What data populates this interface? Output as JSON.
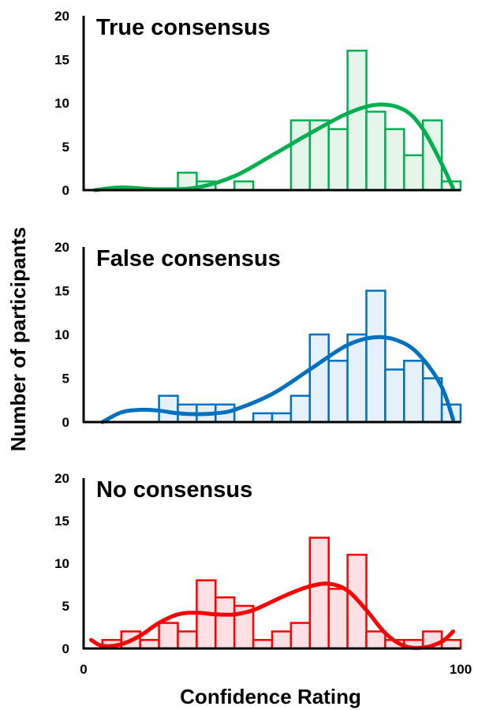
{
  "chart_data": {
    "type": "bar",
    "ylabel": "Number of participants",
    "xlabel": "Confidence Rating",
    "x_ticks": [
      "0",
      "100"
    ],
    "y_ticks": [
      "0",
      "5",
      "10",
      "15",
      "20"
    ],
    "xlim": [
      0,
      100
    ],
    "ylim": [
      0,
      20
    ],
    "bin_width": 5,
    "panels": [
      {
        "title": "True consensus",
        "color": "#00b050",
        "fill": "#e6f5ea",
        "bin_starts": [
          25,
          30,
          40,
          55,
          60,
          65,
          70,
          75,
          80,
          85,
          90,
          95
        ],
        "values": [
          2,
          1,
          1,
          8,
          8,
          7,
          16,
          9,
          7,
          4,
          8,
          1
        ],
        "curve_x": [
          3,
          10,
          20,
          30,
          40,
          50,
          60,
          70,
          78,
          85,
          90,
          95,
          98
        ],
        "curve_y": [
          0,
          0.3,
          0.1,
          0.3,
          1.6,
          4.0,
          6.5,
          8.8,
          9.8,
          9.2,
          7.0,
          3.0,
          0.2
        ]
      },
      {
        "title": "False consensus",
        "color": "#0070c0",
        "fill": "#e5f0fa",
        "bin_starts": [
          20,
          25,
          30,
          35,
          45,
          50,
          55,
          60,
          65,
          70,
          75,
          80,
          85,
          90,
          95
        ],
        "values": [
          3,
          2,
          2,
          2,
          1,
          1,
          3,
          10,
          7,
          10,
          15,
          6,
          7,
          5,
          2
        ],
        "curve_x": [
          5,
          10,
          15,
          20,
          25,
          30,
          35,
          40,
          50,
          60,
          70,
          78,
          85,
          90,
          95,
          98
        ],
        "curve_y": [
          0,
          1.1,
          1.4,
          1.3,
          1.0,
          0.9,
          1.0,
          1.4,
          3.2,
          6.0,
          8.8,
          9.7,
          9.0,
          7.2,
          4.0,
          0.3
        ]
      },
      {
        "title": "No consensus",
        "color": "#ff0000",
        "fill": "#fde0e3",
        "bin_starts": [
          5,
          10,
          15,
          20,
          25,
          30,
          35,
          40,
          45,
          50,
          55,
          60,
          65,
          70,
          75,
          80,
          85,
          90,
          95
        ],
        "values": [
          1,
          2,
          1,
          3,
          2,
          8,
          6,
          5,
          1,
          2,
          3,
          13,
          7,
          11,
          2,
          1,
          1,
          2,
          1
        ],
        "curve_x": [
          2,
          5,
          10,
          15,
          20,
          25,
          30,
          35,
          40,
          45,
          50,
          55,
          60,
          65,
          70,
          75,
          80,
          85,
          90,
          95,
          98
        ],
        "curve_y": [
          1.0,
          0.3,
          0.5,
          1.5,
          3.0,
          4.0,
          4.2,
          4.0,
          4.0,
          4.5,
          5.5,
          6.5,
          7.3,
          7.6,
          6.8,
          4.5,
          1.8,
          0.3,
          0.1,
          0.8,
          2.0
        ]
      }
    ]
  }
}
